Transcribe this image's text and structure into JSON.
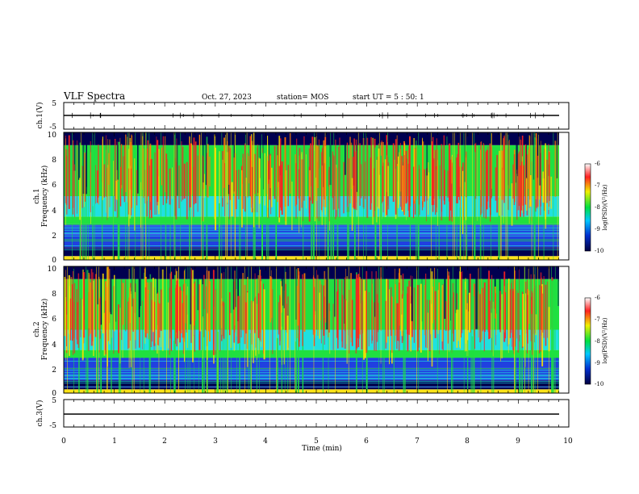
{
  "header": {
    "title": "VLF Spectra",
    "date": "Oct. 27, 2023",
    "station": "station= MOS",
    "start": "start UT =  5 : 50: 1"
  },
  "chart_data": [
    {
      "type": "line",
      "name": "ch1-waveform",
      "ylabel": "ch.1(V)",
      "ylim": [
        -5,
        5
      ],
      "yticks": [
        "5",
        "-5"
      ],
      "xlim": [
        0,
        10
      ],
      "approx_level": 0
    },
    {
      "type": "heatmap",
      "name": "ch1-spectrogram",
      "ylabel_line1": "ch.1",
      "ylabel_line2": "Frequency (kHz)",
      "ylim": [
        0,
        10
      ],
      "yticks": [
        "0",
        "2",
        "4",
        "6",
        "8",
        "10"
      ],
      "xlim": [
        0,
        9.83
      ],
      "colorbar": {
        "label": "log(PSD)(V²/Hz)",
        "ticks": [
          "-6",
          "-7",
          "-8",
          "-9",
          "-10"
        ],
        "range": [
          -10,
          -6
        ]
      }
    },
    {
      "type": "heatmap",
      "name": "ch2-spectrogram",
      "ylabel_line1": "ch.2",
      "ylabel_line2": "Frequency (kHz)",
      "ylim": [
        0,
        10
      ],
      "yticks": [
        "0",
        "2",
        "4",
        "6",
        "8",
        "10"
      ],
      "xlim": [
        0,
        9.83
      ],
      "colorbar": {
        "label": "log(PSD)(V²/Hz)",
        "ticks": [
          "-6",
          "-7",
          "-8",
          "-9",
          "-10"
        ],
        "range": [
          -10,
          -6
        ]
      }
    },
    {
      "type": "line",
      "name": "ch3-waveform",
      "ylabel": "ch.3(V)",
      "ylim": [
        -5,
        5
      ],
      "yticks": [
        "5",
        "-5"
      ],
      "xlim": [
        0,
        10
      ],
      "approx_level": -1.2
    }
  ],
  "xaxis": {
    "label": "Time (min)",
    "ticks": [
      "0",
      "1",
      "2",
      "3",
      "4",
      "5",
      "6",
      "7",
      "8",
      "9",
      "10"
    ]
  },
  "colors": {
    "red": "#ff2020",
    "yellow": "#ffe000",
    "green": "#20e040",
    "cyan": "#20e0e0",
    "blue": "#2040e0",
    "navy": "#000050"
  }
}
